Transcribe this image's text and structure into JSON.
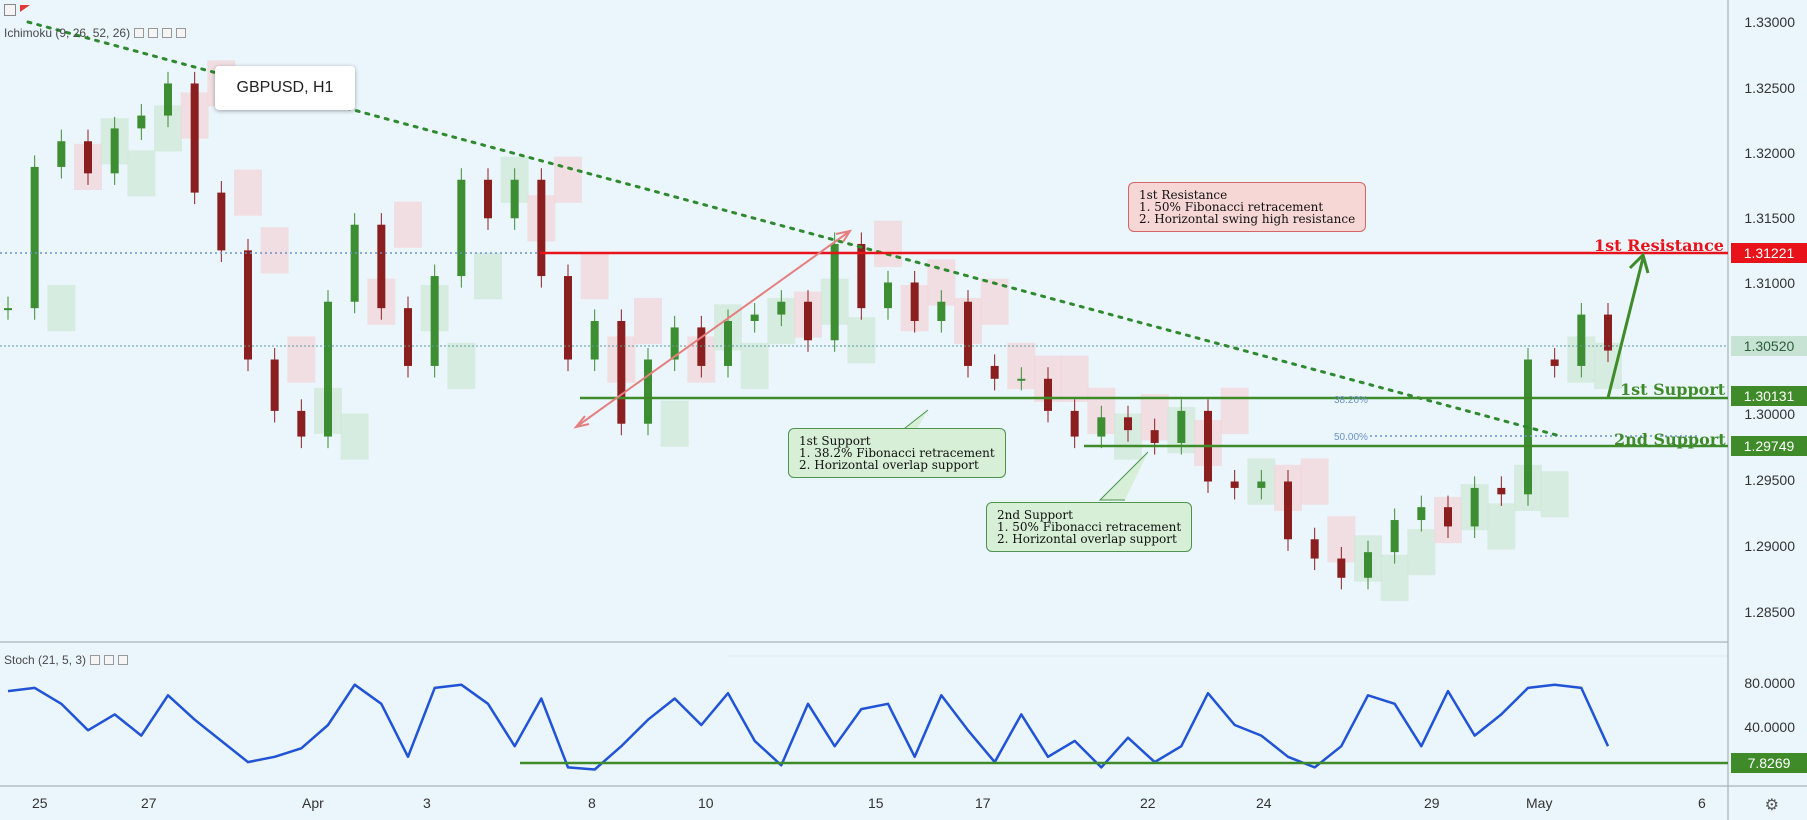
{
  "symbol": "GBPUSD, H1",
  "ichimoku_label": "Ichimoku (9, 26, 52, 26)",
  "stoch_label": "Stoch (21, 5, 3)",
  "colors": {
    "background": "#eaf6fc",
    "resistance": "#e8131a",
    "support": "#3f8b2a",
    "trend": "#2f8a2f",
    "stoch": "#2053d6",
    "bull_candle": "#3d8d32",
    "bear_candle": "#8b1e1e"
  },
  "icons": [
    "chart-settings-icon",
    "flag-icon",
    "eye-icon",
    "gear-icon",
    "close-icon",
    "settings-gear-icon"
  ],
  "notes": {
    "resistance": "1st Resistance\n1. 50% Fibonacci retracement\n2. Horizontal swing high resistance",
    "support1": "1st Support\n1. 38.2% Fibonacci retracement\n2. Horizontal overlap support",
    "support2": "2nd Support\n1. 50% Fibonacci retracement\n2. Horizontal overlap support"
  },
  "level_labels": {
    "resistance": "1st Resistance",
    "support1": "1st Support",
    "support2": "2nd Support"
  },
  "price_tags": {
    "resistance": "1.31221",
    "current": "1.30520",
    "support1": "1.30131",
    "support2": "1.29749",
    "stoch_level": "7.8269"
  },
  "fib_labels": {
    "fib382": "38.20%",
    "fib50": "50.00%"
  },
  "price_axis": [
    "1.33000",
    "1.32500",
    "1.32000",
    "1.31500",
    "1.31000",
    "1.30500",
    "1.30000",
    "1.29500",
    "1.29000",
    "1.28500"
  ],
  "stoch_axis": [
    "80.0000",
    "40.0000"
  ],
  "date_axis": [
    "25",
    "27",
    "Apr",
    "3",
    "8",
    "10",
    "15",
    "17",
    "22",
    "24",
    "29",
    "May",
    "6"
  ],
  "chart_data": {
    "type": "line",
    "title": "GBPUSD, H1",
    "x_categories": [
      "25",
      "27",
      "Apr",
      "3",
      "8",
      "10",
      "15",
      "17",
      "22",
      "24",
      "29",
      "May",
      "6"
    ],
    "ylim": [
      1.2825,
      1.3325
    ],
    "series": [
      {
        "name": "GBPUSD",
        "x": [
          0,
          1,
          2,
          3,
          4,
          5,
          6,
          7,
          8,
          9,
          10,
          11,
          12,
          13,
          14,
          15,
          16,
          17,
          18,
          19,
          20,
          21,
          22,
          23,
          24,
          25,
          26,
          27,
          28,
          29,
          30,
          31,
          32,
          33,
          34,
          35,
          36,
          37,
          38,
          39,
          40,
          41,
          42,
          43,
          44,
          45,
          46,
          47,
          48,
          49,
          50,
          51,
          52,
          53,
          54,
          55,
          56,
          57,
          58,
          59,
          60
        ],
        "y": [
          1.3085,
          1.3195,
          1.3215,
          1.319,
          1.3225,
          1.3235,
          1.326,
          1.3175,
          1.313,
          1.3045,
          1.3005,
          1.2985,
          1.309,
          1.315,
          1.3085,
          1.304,
          1.311,
          1.3185,
          1.3155,
          1.3185,
          1.311,
          1.3045,
          1.3075,
          1.2995,
          1.3045,
          1.307,
          1.304,
          1.3075,
          1.308,
          1.309,
          1.306,
          1.3135,
          1.3085,
          1.3105,
          1.3075,
          1.309,
          1.304,
          1.303,
          1.303,
          1.3005,
          1.2985,
          1.3,
          1.299,
          1.298,
          1.3005,
          1.295,
          1.2945,
          1.295,
          1.2905,
          1.289,
          1.2875,
          1.2895,
          1.292,
          1.293,
          1.2915,
          1.2945,
          1.294,
          1.3045,
          1.304,
          1.308,
          1.3052
        ]
      },
      {
        "name": "Stoch",
        "x": [
          0,
          1,
          2,
          3,
          4,
          5,
          6,
          7,
          8,
          9,
          10,
          11,
          12,
          13,
          14,
          15,
          16,
          17,
          18,
          19,
          20,
          21,
          22,
          23,
          24,
          25,
          26,
          27,
          28,
          29,
          30,
          31,
          32,
          33,
          34,
          35,
          36,
          37,
          38,
          39,
          40,
          41,
          42,
          43,
          44,
          45,
          46,
          47,
          48,
          49,
          50,
          51,
          52,
          53,
          54,
          55,
          56,
          57,
          58,
          59,
          60
        ],
        "y": [
          82,
          85,
          70,
          45,
          60,
          40,
          78,
          55,
          35,
          15,
          20,
          28,
          50,
          88,
          70,
          20,
          85,
          88,
          70,
          30,
          75,
          10,
          8,
          30,
          55,
          75,
          50,
          80,
          35,
          12,
          70,
          30,
          65,
          70,
          20,
          78,
          45,
          15,
          60,
          20,
          35,
          10,
          38,
          15,
          30,
          80,
          50,
          40,
          20,
          10,
          30,
          78,
          70,
          30,
          82,
          40,
          60,
          85,
          88,
          85,
          30
        ]
      }
    ],
    "levels": {
      "resistance": 1.31221,
      "current": 1.3052,
      "support1": 1.30131,
      "support2": 1.29749,
      "stoch_level": 7.8269
    }
  }
}
